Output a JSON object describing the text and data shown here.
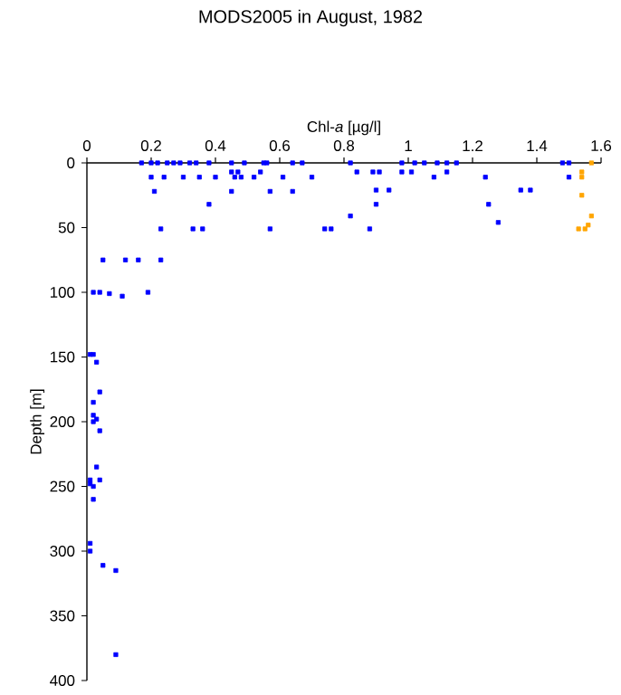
{
  "chart_data": {
    "type": "scatter",
    "title": "MODS2005 in August, 1982",
    "xlabel": "Chl-*a* [µg/l]",
    "ylabel": "Depth [m]",
    "xlim": [
      0,
      1.6
    ],
    "xticks": [
      0,
      0.2,
      0.4,
      0.6,
      0.8,
      1,
      1.2,
      1.4,
      1.6
    ],
    "ylim": [
      400,
      0
    ],
    "yticks": [
      0,
      50,
      100,
      150,
      200,
      250,
      300,
      350,
      400
    ],
    "grid": false,
    "marker": "square",
    "series": [
      {
        "color": "#0000ff",
        "x": [
          0.17,
          0.2,
          0.22,
          0.25,
          0.27,
          0.29,
          0.32,
          0.34,
          0.38,
          0.45,
          0.49,
          0.55,
          0.56,
          0.64,
          0.67,
          0.82,
          0.98,
          1.02,
          1.05,
          1.09,
          1.12,
          1.15,
          1.48,
          1.5,
          0.45,
          0.47,
          0.54,
          0.84,
          0.89,
          0.91,
          0.98,
          1.01,
          1.12,
          0.2,
          0.24,
          0.3,
          0.35,
          0.4,
          0.46,
          0.48,
          0.52,
          0.61,
          0.7,
          1.08,
          1.24,
          1.5,
          0.21,
          0.45,
          0.57,
          0.64,
          0.9,
          0.94,
          1.35,
          1.38,
          0.38,
          0.9,
          1.25,
          0.82,
          1.28,
          0.23,
          0.33,
          0.36,
          0.57,
          0.74,
          0.76,
          0.88,
          0.05,
          0.12,
          0.16,
          0.23,
          0.02,
          0.04,
          0.07,
          0.11,
          0.19,
          0.01,
          0.02,
          0.03,
          0.04,
          0.02,
          0.02,
          0.03,
          0.02,
          0.04,
          0.03,
          0.01,
          0.04,
          0.01,
          0.02,
          0.02,
          0.01,
          0.01,
          0.05,
          0.09,
          0.09
        ],
        "values": [
          0,
          0,
          0,
          0,
          0,
          0,
          0,
          0,
          0,
          0,
          0,
          0,
          0,
          0,
          0,
          0,
          0,
          0,
          0,
          0,
          0,
          0,
          0,
          0,
          7,
          7,
          7,
          7,
          7,
          7,
          7,
          7,
          7,
          11,
          11,
          11,
          11,
          11,
          11,
          11,
          11,
          11,
          11,
          11,
          11,
          11,
          22,
          22,
          22,
          22,
          21,
          21,
          21,
          21,
          32,
          32,
          32,
          41,
          46,
          51,
          51,
          51,
          51,
          51,
          51,
          51,
          75,
          75,
          75,
          75,
          100,
          100,
          101,
          103,
          100,
          148,
          148,
          154,
          177,
          185,
          195,
          198,
          200,
          207,
          235,
          245,
          245,
          248,
          250,
          260,
          294,
          300,
          311,
          315,
          380
        ]
      },
      {
        "color": "#ffa500",
        "x": [
          1.57,
          1.54,
          1.54,
          1.54,
          1.57,
          1.53,
          1.55,
          1.56
        ],
        "values": [
          0,
          7,
          11,
          25,
          41,
          51,
          51,
          48
        ]
      }
    ]
  }
}
